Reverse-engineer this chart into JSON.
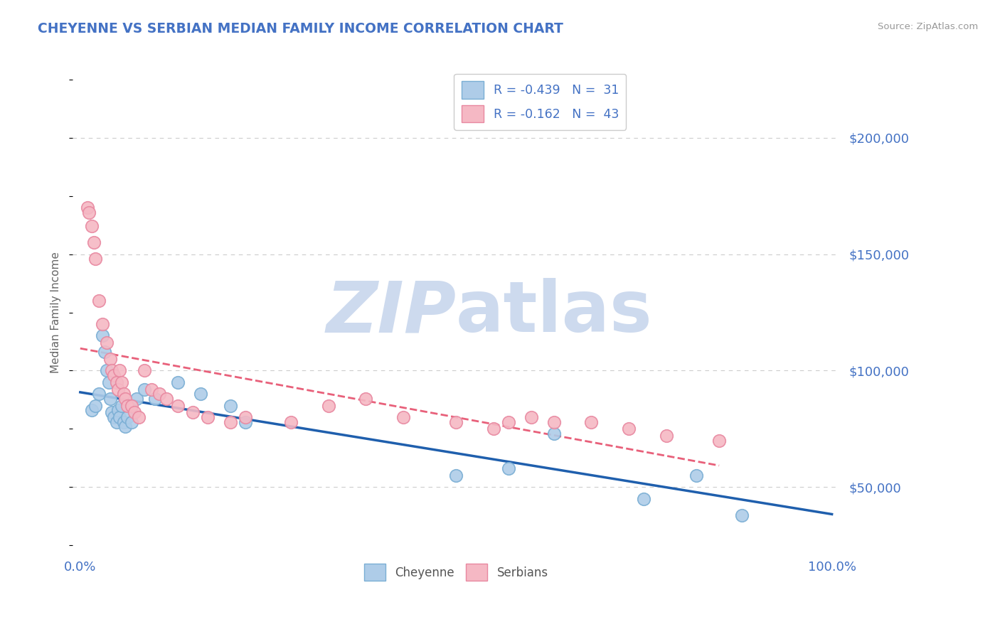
{
  "title": "CHEYENNE VS SERBIAN MEDIAN FAMILY INCOME CORRELATION CHART",
  "source_text": "Source: ZipAtlas.com",
  "ylabel": "Median Family Income",
  "xlim": [
    -1,
    101
  ],
  "ylim": [
    20000,
    230000
  ],
  "yticks": [
    50000,
    100000,
    150000,
    200000
  ],
  "ytick_labels": [
    "$50,000",
    "$100,000",
    "$150,000",
    "$200,000"
  ],
  "xticks": [
    0,
    100
  ],
  "xtick_labels": [
    "0.0%",
    "100.0%"
  ],
  "cheyenne_color": "#aecce8",
  "cheyenne_edge": "#7aaed4",
  "serbian_color": "#f5b8c4",
  "serbian_edge": "#e888a0",
  "trend_cheyenne_color": "#1f5fad",
  "trend_serbian_color": "#e8607a",
  "legend_label_1": "R = -0.439   N =  31",
  "legend_label_2": "R = -0.162   N =  43",
  "cheyenne_x": [
    1.5,
    2.0,
    2.5,
    3.0,
    3.2,
    3.5,
    3.8,
    4.0,
    4.2,
    4.5,
    4.8,
    5.0,
    5.2,
    5.5,
    5.8,
    6.0,
    6.3,
    6.8,
    7.5,
    8.5,
    10.0,
    13.0,
    16.0,
    20.0,
    22.0,
    50.0,
    57.0,
    63.0,
    75.0,
    82.0,
    88.0
  ],
  "cheyenne_y": [
    83000,
    85000,
    90000,
    115000,
    108000,
    100000,
    95000,
    88000,
    82000,
    80000,
    78000,
    83000,
    80000,
    85000,
    78000,
    76000,
    80000,
    78000,
    88000,
    92000,
    88000,
    95000,
    90000,
    85000,
    78000,
    55000,
    58000,
    73000,
    45000,
    55000,
    38000
  ],
  "serbian_x": [
    1.0,
    1.2,
    1.5,
    1.8,
    2.0,
    2.5,
    3.0,
    3.5,
    4.0,
    4.2,
    4.5,
    4.8,
    5.0,
    5.2,
    5.5,
    5.8,
    6.0,
    6.3,
    6.8,
    7.2,
    7.8,
    8.5,
    9.5,
    10.5,
    11.5,
    13.0,
    15.0,
    17.0,
    20.0,
    22.0,
    28.0,
    33.0,
    38.0,
    43.0,
    50.0,
    55.0,
    57.0,
    60.0,
    63.0,
    68.0,
    73.0,
    78.0,
    85.0
  ],
  "serbian_y": [
    170000,
    168000,
    162000,
    155000,
    148000,
    130000,
    120000,
    112000,
    105000,
    100000,
    98000,
    95000,
    92000,
    100000,
    95000,
    90000,
    88000,
    85000,
    85000,
    82000,
    80000,
    100000,
    92000,
    90000,
    88000,
    85000,
    82000,
    80000,
    78000,
    80000,
    78000,
    85000,
    88000,
    80000,
    78000,
    75000,
    78000,
    80000,
    78000,
    78000,
    75000,
    72000,
    70000
  ],
  "background_color": "#ffffff",
  "grid_color": "#cccccc",
  "axis_color": "#4472c4",
  "watermark_text1": "ZIP",
  "watermark_text2": "atlas",
  "watermark_color": "#cddaee"
}
